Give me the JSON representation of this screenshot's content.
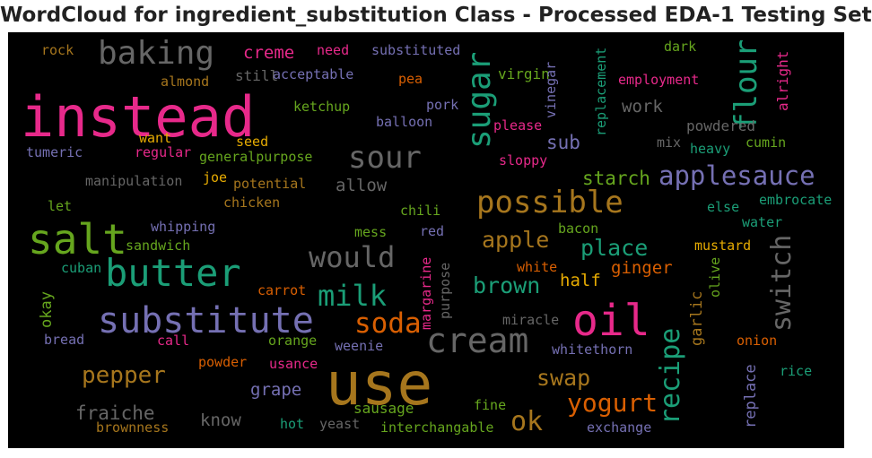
{
  "title": "WordCloud for ingredient_substitution Class - Processed EDA-1 Testing Set",
  "palette": {
    "pink": "#e7298a",
    "green": "#1b9e77",
    "orange": "#d95f02",
    "purple": "#7570b3",
    "lime": "#66a61e",
    "gold": "#e6ab02",
    "brown": "#a6761d",
    "gray": "#666666"
  },
  "words": [
    {
      "text": "instead",
      "color": "#e7298a"
    },
    {
      "text": "baking",
      "color": "#666666"
    },
    {
      "text": "sugar",
      "color": "#1b9e77"
    },
    {
      "text": "flour",
      "color": "#1b9e77"
    },
    {
      "text": "sour",
      "color": "#666666"
    },
    {
      "text": "applesauce",
      "color": "#7570b3"
    },
    {
      "text": "possible",
      "color": "#a6761d"
    },
    {
      "text": "salt",
      "color": "#66a61e"
    },
    {
      "text": "butter",
      "color": "#1b9e77"
    },
    {
      "text": "would",
      "color": "#666666"
    },
    {
      "text": "milk",
      "color": "#1b9e77"
    },
    {
      "text": "substitute",
      "color": "#7570b3"
    },
    {
      "text": "soda",
      "color": "#d95f02"
    },
    {
      "text": "oil",
      "color": "#e7298a"
    },
    {
      "text": "cream",
      "color": "#666666"
    },
    {
      "text": "switch",
      "color": "#666666"
    },
    {
      "text": "use",
      "color": "#a6761d"
    },
    {
      "text": "recipe",
      "color": "#1b9e77"
    },
    {
      "text": "yogurt",
      "color": "#d95f02"
    },
    {
      "text": "pepper",
      "color": "#a6761d"
    },
    {
      "text": "ok",
      "color": "#a6761d"
    },
    {
      "text": "apple",
      "color": "#a6761d"
    },
    {
      "text": "place",
      "color": "#1b9e77"
    },
    {
      "text": "brown",
      "color": "#1b9e77"
    },
    {
      "text": "swap",
      "color": "#a6761d"
    },
    {
      "text": "rock",
      "color": "#a6761d"
    },
    {
      "text": "creme",
      "color": "#e7298a"
    },
    {
      "text": "need",
      "color": "#e7298a"
    },
    {
      "text": "substituted",
      "color": "#7570b3"
    },
    {
      "text": "virgin",
      "color": "#66a61e"
    },
    {
      "text": "vinegar",
      "color": "#7570b3"
    },
    {
      "text": "replacement",
      "color": "#1b9e77"
    },
    {
      "text": "dark",
      "color": "#66a61e"
    },
    {
      "text": "employment",
      "color": "#e7298a"
    },
    {
      "text": "alright",
      "color": "#e7298a"
    },
    {
      "text": "almond",
      "color": "#a6761d"
    },
    {
      "text": "still",
      "color": "#666666"
    },
    {
      "text": "acceptable",
      "color": "#7570b3"
    },
    {
      "text": "pea",
      "color": "#d95f02"
    },
    {
      "text": "ketchup",
      "color": "#66a61e"
    },
    {
      "text": "pork",
      "color": "#7570b3"
    },
    {
      "text": "work",
      "color": "#666666"
    },
    {
      "text": "powdered",
      "color": "#666666"
    },
    {
      "text": "balloon",
      "color": "#7570b3"
    },
    {
      "text": "please",
      "color": "#e7298a"
    },
    {
      "text": "want",
      "color": "#e6ab02"
    },
    {
      "text": "seed",
      "color": "#e6ab02"
    },
    {
      "text": "sub",
      "color": "#7570b3"
    },
    {
      "text": "mix",
      "color": "#666666"
    },
    {
      "text": "cumin",
      "color": "#66a61e"
    },
    {
      "text": "heavy",
      "color": "#1b9e77"
    },
    {
      "text": "tumeric",
      "color": "#7570b3"
    },
    {
      "text": "regular",
      "color": "#e7298a"
    },
    {
      "text": "generalpurpose",
      "color": "#66a61e"
    },
    {
      "text": "sloppy",
      "color": "#e7298a"
    },
    {
      "text": "manipulation",
      "color": "#666666"
    },
    {
      "text": "joe",
      "color": "#e6ab02"
    },
    {
      "text": "potential",
      "color": "#a6761d"
    },
    {
      "text": "allow",
      "color": "#666666"
    },
    {
      "text": "starch",
      "color": "#66a61e"
    },
    {
      "text": "embrocate",
      "color": "#1b9e77"
    },
    {
      "text": "let",
      "color": "#66a61e"
    },
    {
      "text": "chicken",
      "color": "#a6761d"
    },
    {
      "text": "chili",
      "color": "#66a61e"
    },
    {
      "text": "else",
      "color": "#1b9e77"
    },
    {
      "text": "water",
      "color": "#1b9e77"
    },
    {
      "text": "whipping",
      "color": "#7570b3"
    },
    {
      "text": "mess",
      "color": "#66a61e"
    },
    {
      "text": "red",
      "color": "#7570b3"
    },
    {
      "text": "bacon",
      "color": "#66a61e"
    },
    {
      "text": "sandwich",
      "color": "#66a61e"
    },
    {
      "text": "mustard",
      "color": "#e6ab02"
    },
    {
      "text": "ginger",
      "color": "#d95f02"
    },
    {
      "text": "cuban",
      "color": "#1b9e77"
    },
    {
      "text": "margarine",
      "color": "#e7298a"
    },
    {
      "text": "purpose",
      "color": "#666666"
    },
    {
      "text": "white",
      "color": "#d95f02"
    },
    {
      "text": "half",
      "color": "#e6ab02"
    },
    {
      "text": "olive",
      "color": "#66a61e"
    },
    {
      "text": "okay",
      "color": "#66a61e"
    },
    {
      "text": "carrot",
      "color": "#d95f02"
    },
    {
      "text": "garlic",
      "color": "#a6761d"
    },
    {
      "text": "bread",
      "color": "#7570b3"
    },
    {
      "text": "call",
      "color": "#e7298a"
    },
    {
      "text": "orange",
      "color": "#66a61e"
    },
    {
      "text": "weenie",
      "color": "#7570b3"
    },
    {
      "text": "miracle",
      "color": "#666666"
    },
    {
      "text": "onion",
      "color": "#d95f02"
    },
    {
      "text": "whitethorn",
      "color": "#7570b3"
    },
    {
      "text": "powder",
      "color": "#d95f02"
    },
    {
      "text": "usance",
      "color": "#e7298a"
    },
    {
      "text": "replace",
      "color": "#7570b3"
    },
    {
      "text": "rice",
      "color": "#1b9e77"
    },
    {
      "text": "grape",
      "color": "#7570b3"
    },
    {
      "text": "fraiche",
      "color": "#666666"
    },
    {
      "text": "know",
      "color": "#666666"
    },
    {
      "text": "sausage",
      "color": "#66a61e"
    },
    {
      "text": "fine",
      "color": "#66a61e"
    },
    {
      "text": "exchange",
      "color": "#7570b3"
    },
    {
      "text": "hot",
      "color": "#1b9e77"
    },
    {
      "text": "yeast",
      "color": "#666666"
    },
    {
      "text": "brownness",
      "color": "#a6761d"
    },
    {
      "text": "interchangable",
      "color": "#66a61e"
    }
  ]
}
